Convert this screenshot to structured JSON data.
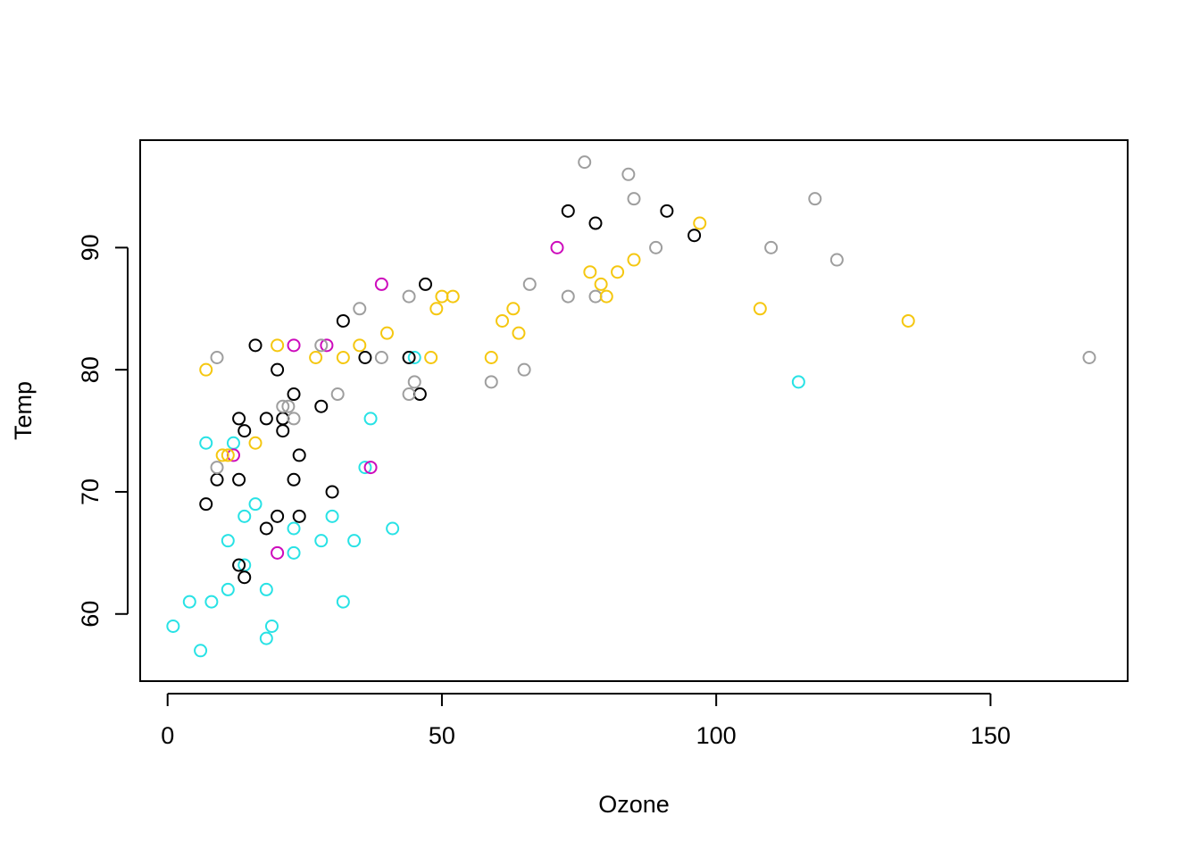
{
  "chart_data": {
    "type": "scatter",
    "title": "",
    "xlabel": "Ozone",
    "ylabel": "Temp",
    "xlim": [
      -5,
      175
    ],
    "ylim": [
      54.5,
      98.8
    ],
    "x_ticks": [
      0,
      50,
      100,
      150
    ],
    "y_ticks": [
      60,
      70,
      80,
      90
    ],
    "grid": false,
    "legend": "none",
    "marker": "open-circle",
    "colors": {
      "black": "#000000",
      "gray": "#9e9e9e",
      "gold": "#f5c710",
      "cyan": "#28e2e5",
      "magenta": "#cd0bbc"
    },
    "points": [
      {
        "x": 1,
        "y": 59,
        "color": "cyan"
      },
      {
        "x": 4,
        "y": 61,
        "color": "cyan"
      },
      {
        "x": 6,
        "y": 57,
        "color": "cyan"
      },
      {
        "x": 7,
        "y": 74,
        "color": "cyan"
      },
      {
        "x": 8,
        "y": 61,
        "color": "cyan"
      },
      {
        "x": 11,
        "y": 66,
        "color": "cyan"
      },
      {
        "x": 11,
        "y": 62,
        "color": "cyan"
      },
      {
        "x": 12,
        "y": 74,
        "color": "cyan"
      },
      {
        "x": 14,
        "y": 68,
        "color": "cyan"
      },
      {
        "x": 14,
        "y": 64,
        "color": "cyan"
      },
      {
        "x": 16,
        "y": 69,
        "color": "cyan"
      },
      {
        "x": 18,
        "y": 62,
        "color": "cyan"
      },
      {
        "x": 18,
        "y": 58,
        "color": "cyan"
      },
      {
        "x": 19,
        "y": 59,
        "color": "cyan"
      },
      {
        "x": 23,
        "y": 67,
        "color": "cyan"
      },
      {
        "x": 23,
        "y": 65,
        "color": "cyan"
      },
      {
        "x": 28,
        "y": 66,
        "color": "cyan"
      },
      {
        "x": 30,
        "y": 68,
        "color": "cyan"
      },
      {
        "x": 32,
        "y": 61,
        "color": "cyan"
      },
      {
        "x": 34,
        "y": 66,
        "color": "cyan"
      },
      {
        "x": 36,
        "y": 72,
        "color": "cyan"
      },
      {
        "x": 37,
        "y": 76,
        "color": "cyan"
      },
      {
        "x": 41,
        "y": 67,
        "color": "cyan"
      },
      {
        "x": 45,
        "y": 81,
        "color": "cyan"
      },
      {
        "x": 115,
        "y": 79,
        "color": "cyan"
      },
      {
        "x": 12,
        "y": 73,
        "color": "magenta"
      },
      {
        "x": 20,
        "y": 65,
        "color": "magenta"
      },
      {
        "x": 23,
        "y": 82,
        "color": "magenta"
      },
      {
        "x": 29,
        "y": 82,
        "color": "magenta"
      },
      {
        "x": 37,
        "y": 72,
        "color": "magenta"
      },
      {
        "x": 39,
        "y": 87,
        "color": "magenta"
      },
      {
        "x": 71,
        "y": 90,
        "color": "magenta"
      },
      {
        "x": 7,
        "y": 69,
        "color": "black"
      },
      {
        "x": 9,
        "y": 71,
        "color": "black"
      },
      {
        "x": 13,
        "y": 76,
        "color": "black"
      },
      {
        "x": 13,
        "y": 71,
        "color": "black"
      },
      {
        "x": 13,
        "y": 64,
        "color": "black"
      },
      {
        "x": 14,
        "y": 75,
        "color": "black"
      },
      {
        "x": 14,
        "y": 63,
        "color": "black"
      },
      {
        "x": 16,
        "y": 82,
        "color": "black"
      },
      {
        "x": 18,
        "y": 76,
        "color": "black"
      },
      {
        "x": 18,
        "y": 67,
        "color": "black"
      },
      {
        "x": 20,
        "y": 80,
        "color": "black"
      },
      {
        "x": 20,
        "y": 68,
        "color": "black"
      },
      {
        "x": 21,
        "y": 76,
        "color": "black"
      },
      {
        "x": 21,
        "y": 75,
        "color": "black"
      },
      {
        "x": 23,
        "y": 78,
        "color": "black"
      },
      {
        "x": 23,
        "y": 71,
        "color": "black"
      },
      {
        "x": 24,
        "y": 73,
        "color": "black"
      },
      {
        "x": 24,
        "y": 68,
        "color": "black"
      },
      {
        "x": 28,
        "y": 77,
        "color": "black"
      },
      {
        "x": 30,
        "y": 70,
        "color": "black"
      },
      {
        "x": 32,
        "y": 84,
        "color": "black"
      },
      {
        "x": 36,
        "y": 81,
        "color": "black"
      },
      {
        "x": 44,
        "y": 81,
        "color": "black"
      },
      {
        "x": 46,
        "y": 78,
        "color": "black"
      },
      {
        "x": 47,
        "y": 87,
        "color": "black"
      },
      {
        "x": 73,
        "y": 93,
        "color": "black"
      },
      {
        "x": 78,
        "y": 92,
        "color": "black"
      },
      {
        "x": 91,
        "y": 93,
        "color": "black"
      },
      {
        "x": 96,
        "y": 91,
        "color": "black"
      },
      {
        "x": 9,
        "y": 81,
        "color": "gray"
      },
      {
        "x": 9,
        "y": 72,
        "color": "gray"
      },
      {
        "x": 21,
        "y": 77,
        "color": "gray"
      },
      {
        "x": 22,
        "y": 77,
        "color": "gray"
      },
      {
        "x": 23,
        "y": 76,
        "color": "gray"
      },
      {
        "x": 28,
        "y": 82,
        "color": "gray"
      },
      {
        "x": 31,
        "y": 78,
        "color": "gray"
      },
      {
        "x": 35,
        "y": 85,
        "color": "gray"
      },
      {
        "x": 39,
        "y": 81,
        "color": "gray"
      },
      {
        "x": 44,
        "y": 86,
        "color": "gray"
      },
      {
        "x": 44,
        "y": 78,
        "color": "gray"
      },
      {
        "x": 45,
        "y": 79,
        "color": "gray"
      },
      {
        "x": 59,
        "y": 79,
        "color": "gray"
      },
      {
        "x": 65,
        "y": 80,
        "color": "gray"
      },
      {
        "x": 66,
        "y": 87,
        "color": "gray"
      },
      {
        "x": 73,
        "y": 86,
        "color": "gray"
      },
      {
        "x": 76,
        "y": 97,
        "color": "gray"
      },
      {
        "x": 78,
        "y": 86,
        "color": "gray"
      },
      {
        "x": 84,
        "y": 96,
        "color": "gray"
      },
      {
        "x": 85,
        "y": 94,
        "color": "gray"
      },
      {
        "x": 89,
        "y": 90,
        "color": "gray"
      },
      {
        "x": 110,
        "y": 90,
        "color": "gray"
      },
      {
        "x": 118,
        "y": 94,
        "color": "gray"
      },
      {
        "x": 122,
        "y": 89,
        "color": "gray"
      },
      {
        "x": 168,
        "y": 81,
        "color": "gray"
      },
      {
        "x": 7,
        "y": 80,
        "color": "gold"
      },
      {
        "x": 10,
        "y": 73,
        "color": "gold"
      },
      {
        "x": 11,
        "y": 73,
        "color": "gold"
      },
      {
        "x": 16,
        "y": 74,
        "color": "gold"
      },
      {
        "x": 20,
        "y": 82,
        "color": "gold"
      },
      {
        "x": 27,
        "y": 81,
        "color": "gold"
      },
      {
        "x": 32,
        "y": 81,
        "color": "gold"
      },
      {
        "x": 35,
        "y": 82,
        "color": "gold"
      },
      {
        "x": 40,
        "y": 83,
        "color": "gold"
      },
      {
        "x": 48,
        "y": 81,
        "color": "gold"
      },
      {
        "x": 49,
        "y": 85,
        "color": "gold"
      },
      {
        "x": 50,
        "y": 86,
        "color": "gold"
      },
      {
        "x": 52,
        "y": 86,
        "color": "gold"
      },
      {
        "x": 59,
        "y": 81,
        "color": "gold"
      },
      {
        "x": 61,
        "y": 84,
        "color": "gold"
      },
      {
        "x": 63,
        "y": 85,
        "color": "gold"
      },
      {
        "x": 64,
        "y": 83,
        "color": "gold"
      },
      {
        "x": 77,
        "y": 88,
        "color": "gold"
      },
      {
        "x": 79,
        "y": 87,
        "color": "gold"
      },
      {
        "x": 80,
        "y": 86,
        "color": "gold"
      },
      {
        "x": 82,
        "y": 88,
        "color": "gold"
      },
      {
        "x": 85,
        "y": 89,
        "color": "gold"
      },
      {
        "x": 97,
        "y": 92,
        "color": "gold"
      },
      {
        "x": 108,
        "y": 85,
        "color": "gold"
      },
      {
        "x": 135,
        "y": 84,
        "color": "gold"
      }
    ]
  }
}
